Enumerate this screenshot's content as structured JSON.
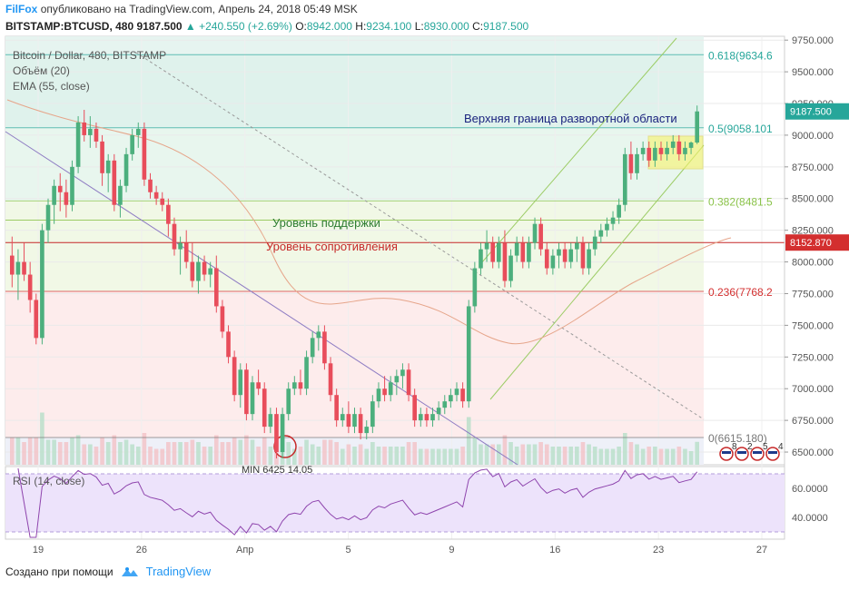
{
  "header": {
    "author": "FilFox",
    "published": "опубликовано на TradingView.com, Апрель 24, 2018 05:49 MSK",
    "symbol": "BITSTAMP:BTCUSD",
    "interval": ", 480",
    "last": "9187.500",
    "change": "▲ +240.550 (+2.69%)",
    "o_label": "O:",
    "o": "8942.000",
    "h_label": "H:",
    "h": "9234.100",
    "l_label": "L:",
    "l": "8930.000",
    "c_label": "C:",
    "c": "9187.500"
  },
  "legend": {
    "title": "Bitcoin / Dollar, 480, BITSTAMP",
    "volume": "Объём (20)",
    "ema": "EMA (55, close)",
    "rsi": "RSI (14, close)"
  },
  "annotations": {
    "support": "Уровень поддержки",
    "resistance": "Уровень сопротивления",
    "reversal": "Верхняя граница разворотной области",
    "min_partial": "MIN 6425 14.05"
  },
  "footer": {
    "created": "Создано при помощи",
    "brand": "TradingView"
  },
  "events": [
    {
      "icon": "us-flag-icon",
      "count": "8"
    },
    {
      "icon": "us-flag-icon",
      "count": "2"
    },
    {
      "icon": "us-flag-icon",
      "count": "5"
    },
    {
      "icon": "us-flag-icon",
      "count": "4"
    }
  ],
  "colors": {
    "up": "#4caf7d",
    "down": "#e84d5b",
    "fib_green": "#26a69a",
    "fib_red": "#d32f2f",
    "support": "#2e7d32",
    "resistance": "#c62828",
    "reversal": "#1a237e",
    "price_tag": "#26a69a",
    "level_tag": "#d32f2f"
  },
  "chart_data": {
    "type": "candlestick",
    "price_axis": {
      "ticks": [
        6500,
        6750,
        7000,
        7250,
        7500,
        7750,
        8000,
        8250,
        8500,
        8750,
        9000,
        9250,
        9500,
        9750
      ],
      "tick_labels": [
        "6500.000",
        "6750.000",
        "7000.000",
        "7250.000",
        "7500.000",
        "7750.000",
        "8000.000",
        "8250.000",
        "8500.000",
        "8750.000",
        "9000.000",
        "9250.000",
        "9500.000",
        "9750.000"
      ],
      "range": [
        6400,
        9780
      ]
    },
    "rsi_axis": {
      "ticks": [
        40,
        60
      ],
      "tick_labels": [
        "40.0000",
        "60.0000"
      ],
      "range": [
        25,
        75
      ],
      "band": [
        30,
        70
      ]
    },
    "time_axis": {
      "labels": [
        "19",
        "26",
        "Апр",
        "5",
        "9",
        "16",
        "23",
        "27"
      ]
    },
    "last_price_label": "9187.500",
    "level_label": "8152.870",
    "level_value": 8152.87,
    "fib_levels": [
      {
        "label": "0.618(9634.6",
        "value": 9634.6,
        "color": "#26a69a"
      },
      {
        "label": "0.5(9058.101",
        "value": 9058.1,
        "color": "#26a69a"
      },
      {
        "label": "0.382(8481.5",
        "value": 8481.5,
        "color": "#8bc34a"
      },
      {
        "label": "0.236(7768.2",
        "value": 7768.2,
        "color": "#d32f2f"
      },
      {
        "label": "0(6615.180)",
        "value": 6615.18,
        "color": "#777777"
      }
    ],
    "candles_ohlc": [
      [
        8050,
        8200,
        7800,
        7900
      ],
      [
        7900,
        8100,
        7700,
        8000
      ],
      [
        8000,
        8150,
        7850,
        7900
      ],
      [
        7900,
        8000,
        7600,
        7700
      ],
      [
        7700,
        7750,
        7350,
        7400
      ],
      [
        7400,
        8300,
        7350,
        8250
      ],
      [
        8250,
        8500,
        8150,
        8450
      ],
      [
        8450,
        8650,
        8300,
        8600
      ],
      [
        8600,
        8700,
        8400,
        8550
      ],
      [
        8550,
        8650,
        8350,
        8450
      ],
      [
        8450,
        8800,
        8400,
        8750
      ],
      [
        8750,
        9150,
        8700,
        9100
      ],
      [
        9100,
        9200,
        8950,
        9000
      ],
      [
        9000,
        9150,
        8900,
        9050
      ],
      [
        9050,
        9100,
        8900,
        8950
      ],
      [
        8950,
        9000,
        8600,
        8700
      ],
      [
        8700,
        8850,
        8550,
        8800
      ],
      [
        8800,
        8850,
        8400,
        8450
      ],
      [
        8450,
        8650,
        8350,
        8600
      ],
      [
        8600,
        8900,
        8550,
        8850
      ],
      [
        8850,
        9050,
        8800,
        9000
      ],
      [
        9000,
        9100,
        8900,
        9050
      ],
      [
        9050,
        9100,
        8600,
        8650
      ],
      [
        8650,
        8700,
        8500,
        8550
      ],
      [
        8550,
        8600,
        8450,
        8500
      ],
      [
        8500,
        8550,
        8400,
        8450
      ],
      [
        8450,
        8500,
        8200,
        8300
      ],
      [
        8300,
        8350,
        8050,
        8100
      ],
      [
        8100,
        8200,
        7900,
        8150
      ],
      [
        8150,
        8250,
        7950,
        8000
      ],
      [
        8000,
        8150,
        7800,
        7850
      ],
      [
        7850,
        8050,
        7750,
        8000
      ],
      [
        8000,
        8050,
        7850,
        7900
      ],
      [
        7900,
        8000,
        7800,
        7950
      ],
      [
        7950,
        8050,
        7600,
        7650
      ],
      [
        7650,
        7700,
        7400,
        7450
      ],
      [
        7450,
        7500,
        7200,
        7250
      ],
      [
        7250,
        7300,
        6900,
        6950
      ],
      [
        6950,
        7200,
        6850,
        7150
      ],
      [
        7150,
        7200,
        6750,
        6800
      ],
      [
        6800,
        7100,
        6750,
        7050
      ],
      [
        7050,
        7150,
        6950,
        7000
      ],
      [
        7000,
        7050,
        6650,
        6700
      ],
      [
        6700,
        6850,
        6650,
        6800
      ],
      [
        6800,
        6850,
        6450,
        6500
      ],
      [
        6500,
        6850,
        6450,
        6800
      ],
      [
        6800,
        7050,
        6750,
        7000
      ],
      [
        7000,
        7100,
        6950,
        7050
      ],
      [
        7050,
        7150,
        6950,
        7000
      ],
      [
        7000,
        7300,
        6950,
        7250
      ],
      [
        7250,
        7450,
        7200,
        7400
      ],
      [
        7400,
        7500,
        7300,
        7450
      ],
      [
        7450,
        7500,
        7150,
        7200
      ],
      [
        7200,
        7250,
        6900,
        6950
      ],
      [
        6950,
        7000,
        6700,
        6750
      ],
      [
        6750,
        6850,
        6700,
        6800
      ],
      [
        6800,
        6900,
        6650,
        6700
      ],
      [
        6700,
        6850,
        6650,
        6800
      ],
      [
        6800,
        6850,
        6600,
        6650
      ],
      [
        6650,
        6750,
        6600,
        6700
      ],
      [
        6700,
        6950,
        6650,
        6900
      ],
      [
        6900,
        7050,
        6850,
        7000
      ],
      [
        7000,
        7100,
        6900,
        6950
      ],
      [
        6950,
        7100,
        6900,
        7050
      ],
      [
        7050,
        7150,
        6950,
        7100
      ],
      [
        7100,
        7200,
        7000,
        7150
      ],
      [
        7150,
        7200,
        6900,
        6950
      ],
      [
        6950,
        7000,
        6700,
        6750
      ],
      [
        6750,
        6850,
        6700,
        6800
      ],
      [
        6800,
        6850,
        6700,
        6750
      ],
      [
        6750,
        6850,
        6700,
        6800
      ],
      [
        6800,
        6900,
        6750,
        6850
      ],
      [
        6850,
        6950,
        6800,
        6900
      ],
      [
        6900,
        7000,
        6850,
        6950
      ],
      [
        6950,
        7050,
        6900,
        7000
      ],
      [
        7000,
        7050,
        6850,
        6900
      ],
      [
        6900,
        7700,
        6850,
        7650
      ],
      [
        7650,
        8000,
        7600,
        7950
      ],
      [
        7950,
        8150,
        7900,
        8100
      ],
      [
        8100,
        8250,
        8000,
        8150
      ],
      [
        8150,
        8200,
        7950,
        8000
      ],
      [
        8000,
        8200,
        7950,
        8150
      ],
      [
        8150,
        8250,
        7800,
        7850
      ],
      [
        7850,
        8100,
        7800,
        8050
      ],
      [
        8050,
        8200,
        8000,
        8150
      ],
      [
        8150,
        8200,
        7950,
        8000
      ],
      [
        8000,
        8200,
        7950,
        8150
      ],
      [
        8150,
        8350,
        8100,
        8300
      ],
      [
        8300,
        8350,
        8050,
        8100
      ],
      [
        8100,
        8150,
        7900,
        7950
      ],
      [
        7950,
        8100,
        7900,
        8050
      ],
      [
        8050,
        8150,
        7950,
        8100
      ],
      [
        8100,
        8150,
        7950,
        8000
      ],
      [
        8000,
        8150,
        7950,
        8100
      ],
      [
        8100,
        8200,
        8000,
        8150
      ],
      [
        8150,
        8200,
        7900,
        7950
      ],
      [
        7950,
        8150,
        7900,
        8100
      ],
      [
        8100,
        8250,
        8050,
        8200
      ],
      [
        8200,
        8300,
        8150,
        8250
      ],
      [
        8250,
        8350,
        8200,
        8300
      ],
      [
        8300,
        8400,
        8250,
        8350
      ],
      [
        8350,
        8500,
        8300,
        8450
      ],
      [
        8450,
        8900,
        8400,
        8850
      ],
      [
        8850,
        8950,
        8650,
        8700
      ],
      [
        8700,
        8900,
        8650,
        8850
      ],
      [
        8850,
        8950,
        8800,
        8900
      ],
      [
        8900,
        8950,
        8750,
        8800
      ],
      [
        8800,
        8950,
        8750,
        8900
      ],
      [
        8900,
        8950,
        8800,
        8850
      ],
      [
        8850,
        8950,
        8800,
        8900
      ],
      [
        8900,
        9000,
        8850,
        8950
      ],
      [
        8950,
        9000,
        8800,
        8850
      ],
      [
        8850,
        8950,
        8800,
        8900
      ],
      [
        8900,
        8950,
        8850,
        8942
      ],
      [
        8942,
        9234,
        8930,
        9187.5
      ]
    ]
  }
}
